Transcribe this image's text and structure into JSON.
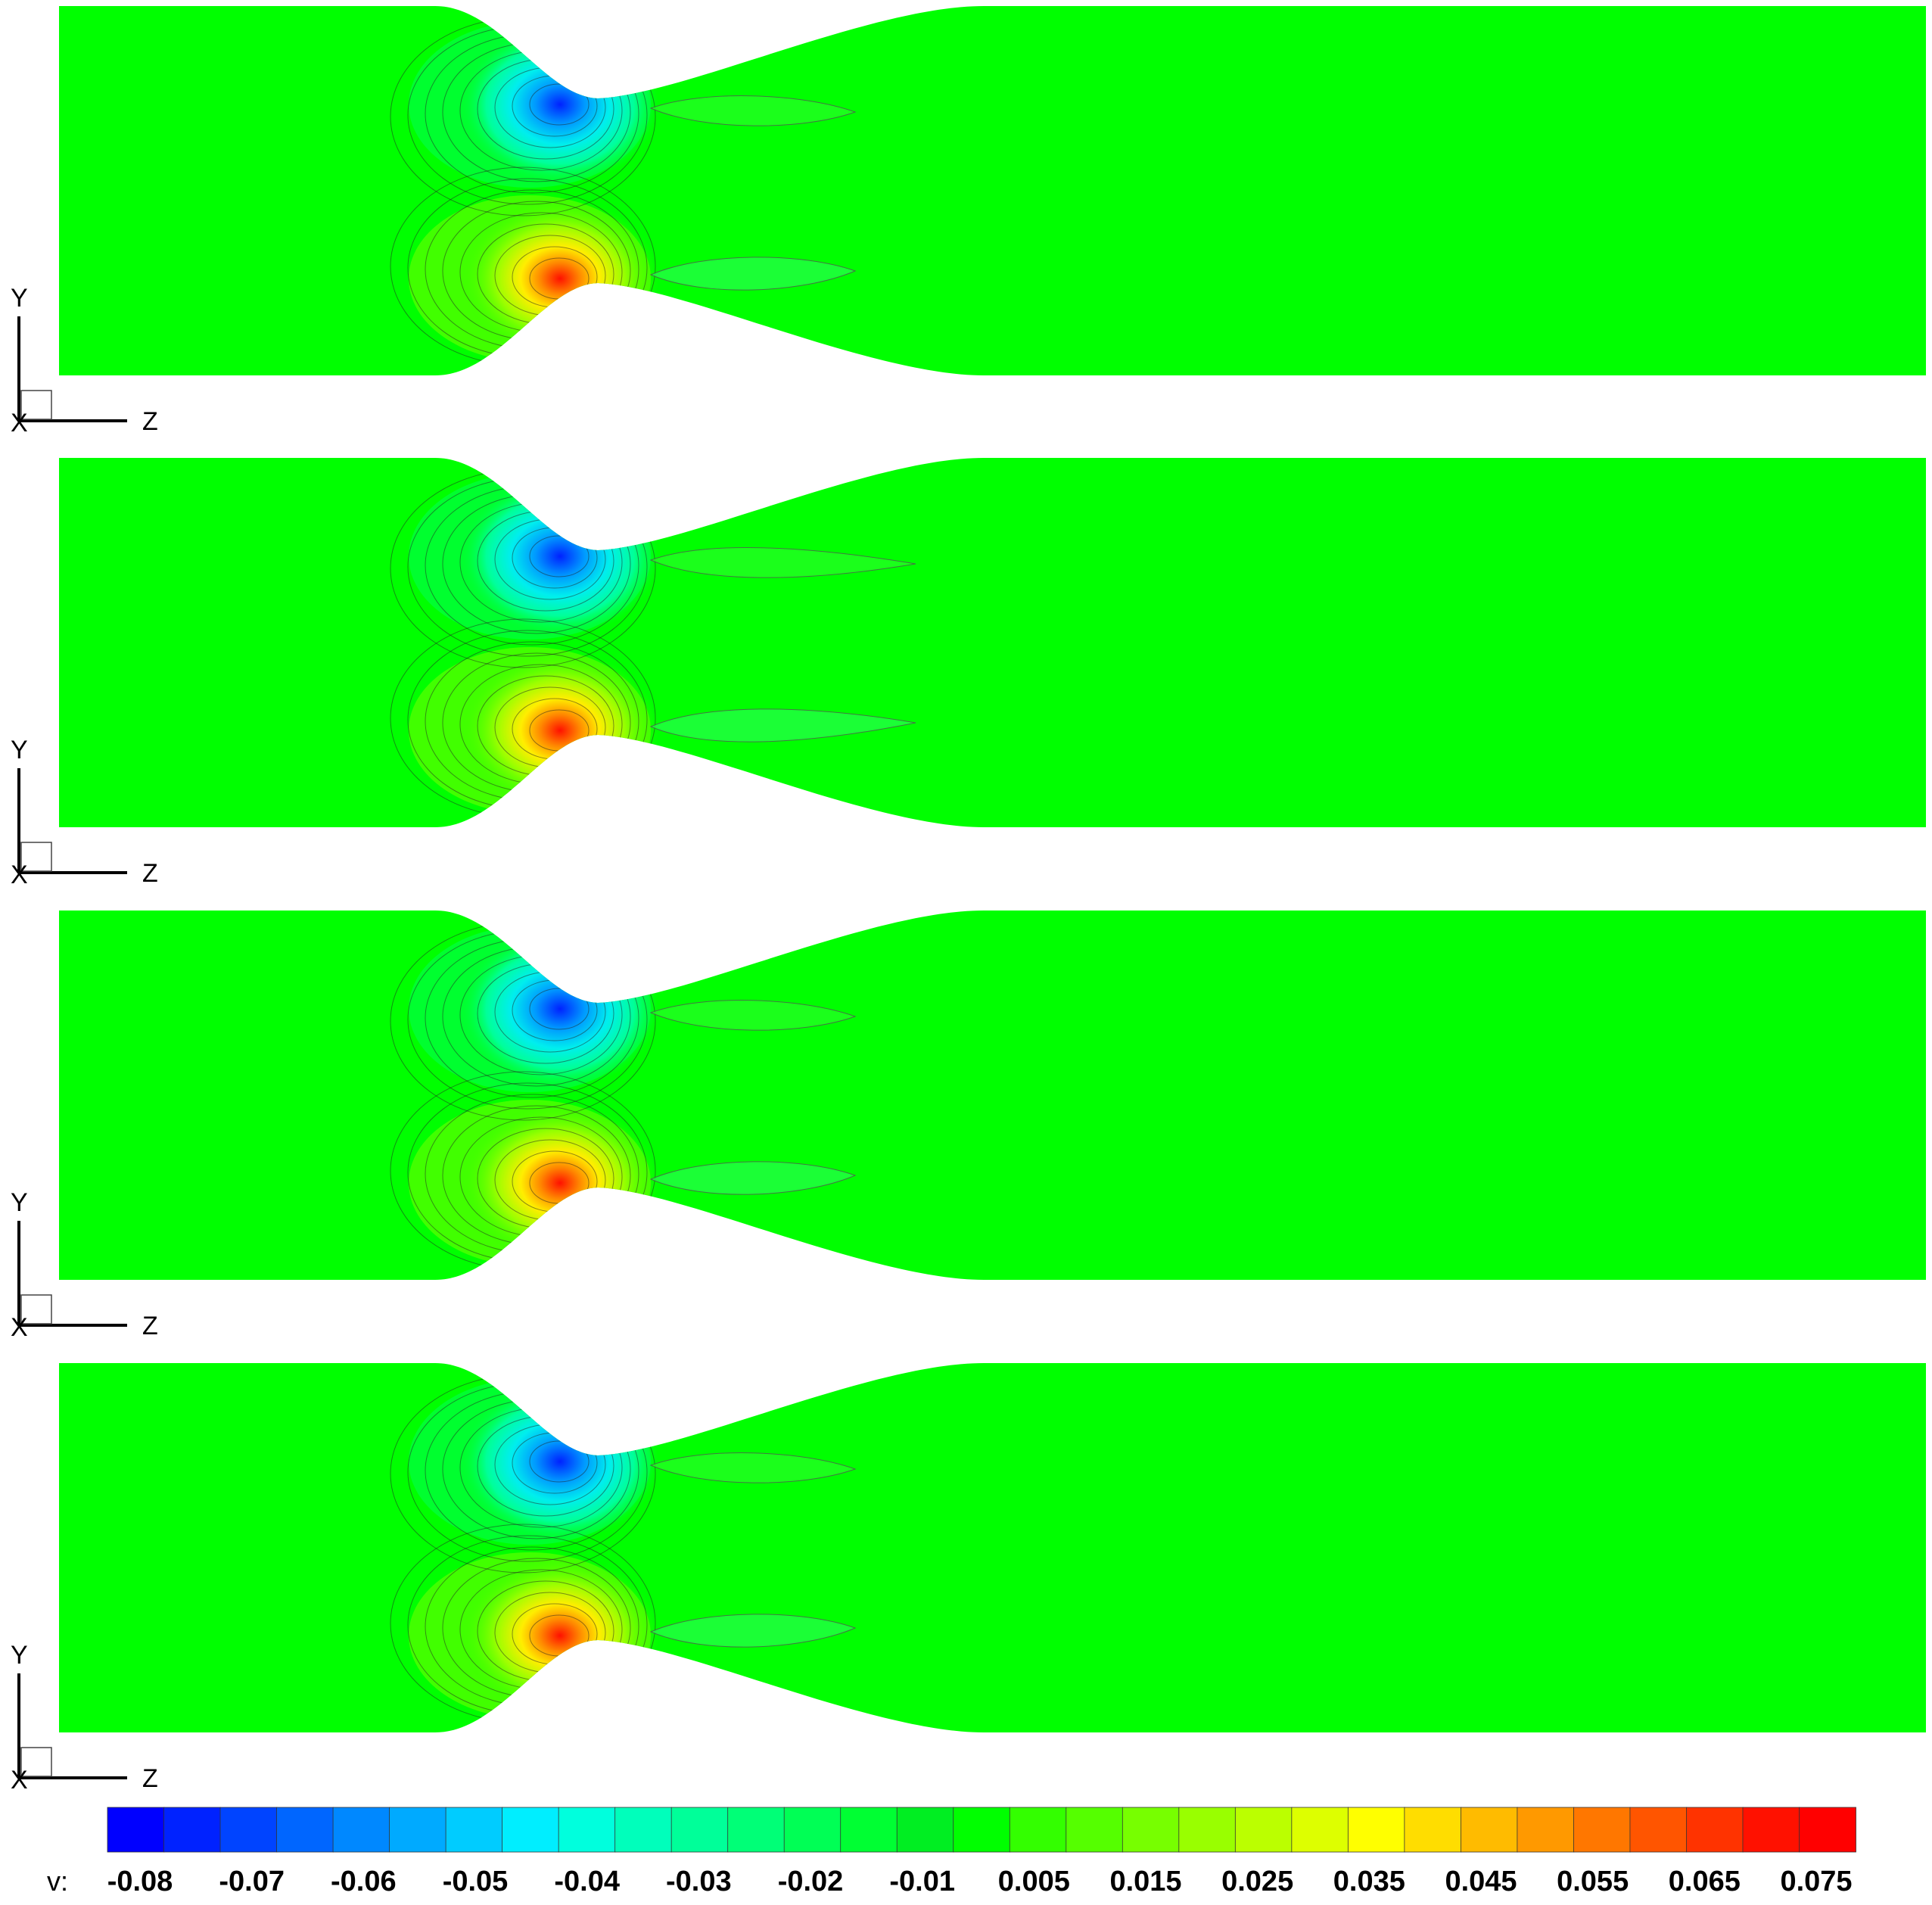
{
  "chart_data": {
    "type": "contour",
    "variable_label": "v:",
    "panels": [
      {
        "axis_y_label": "Y",
        "axis_z_label": "Z",
        "axis_x_label": "X"
      },
      {
        "axis_y_label": "Y",
        "axis_z_label": "Z",
        "axis_x_label": "X"
      },
      {
        "axis_y_label": "Y",
        "axis_z_label": "Z",
        "axis_x_label": "X"
      },
      {
        "axis_y_label": "Y",
        "axis_z_label": "Z",
        "axis_x_label": "X"
      }
    ],
    "colorbar": {
      "tick_labels": [
        "-0.08",
        "-0.07",
        "-0.06",
        "-0.05",
        "-0.04",
        "-0.03",
        "-0.02",
        "-0.01",
        "0.005",
        "0.015",
        "0.025",
        "0.035",
        "0.045",
        "0.055",
        "0.065",
        "0.075"
      ],
      "colors": [
        "#0000ff",
        "#0022ff",
        "#0044ff",
        "#0066ff",
        "#0088ff",
        "#00aaff",
        "#00ccff",
        "#00eeff",
        "#00ffdd",
        "#00ffbb",
        "#00ff99",
        "#00ff77",
        "#00ff55",
        "#00ff33",
        "#00ee22",
        "#00ff00",
        "#33ff00",
        "#55ff00",
        "#77ff00",
        "#99ff00",
        "#bbff00",
        "#ddff00",
        "#ffff00",
        "#ffdd00",
        "#ffbb00",
        "#ff9900",
        "#ff7700",
        "#ff5500",
        "#ff3300",
        "#ff1100",
        "#ff0000"
      ]
    }
  }
}
